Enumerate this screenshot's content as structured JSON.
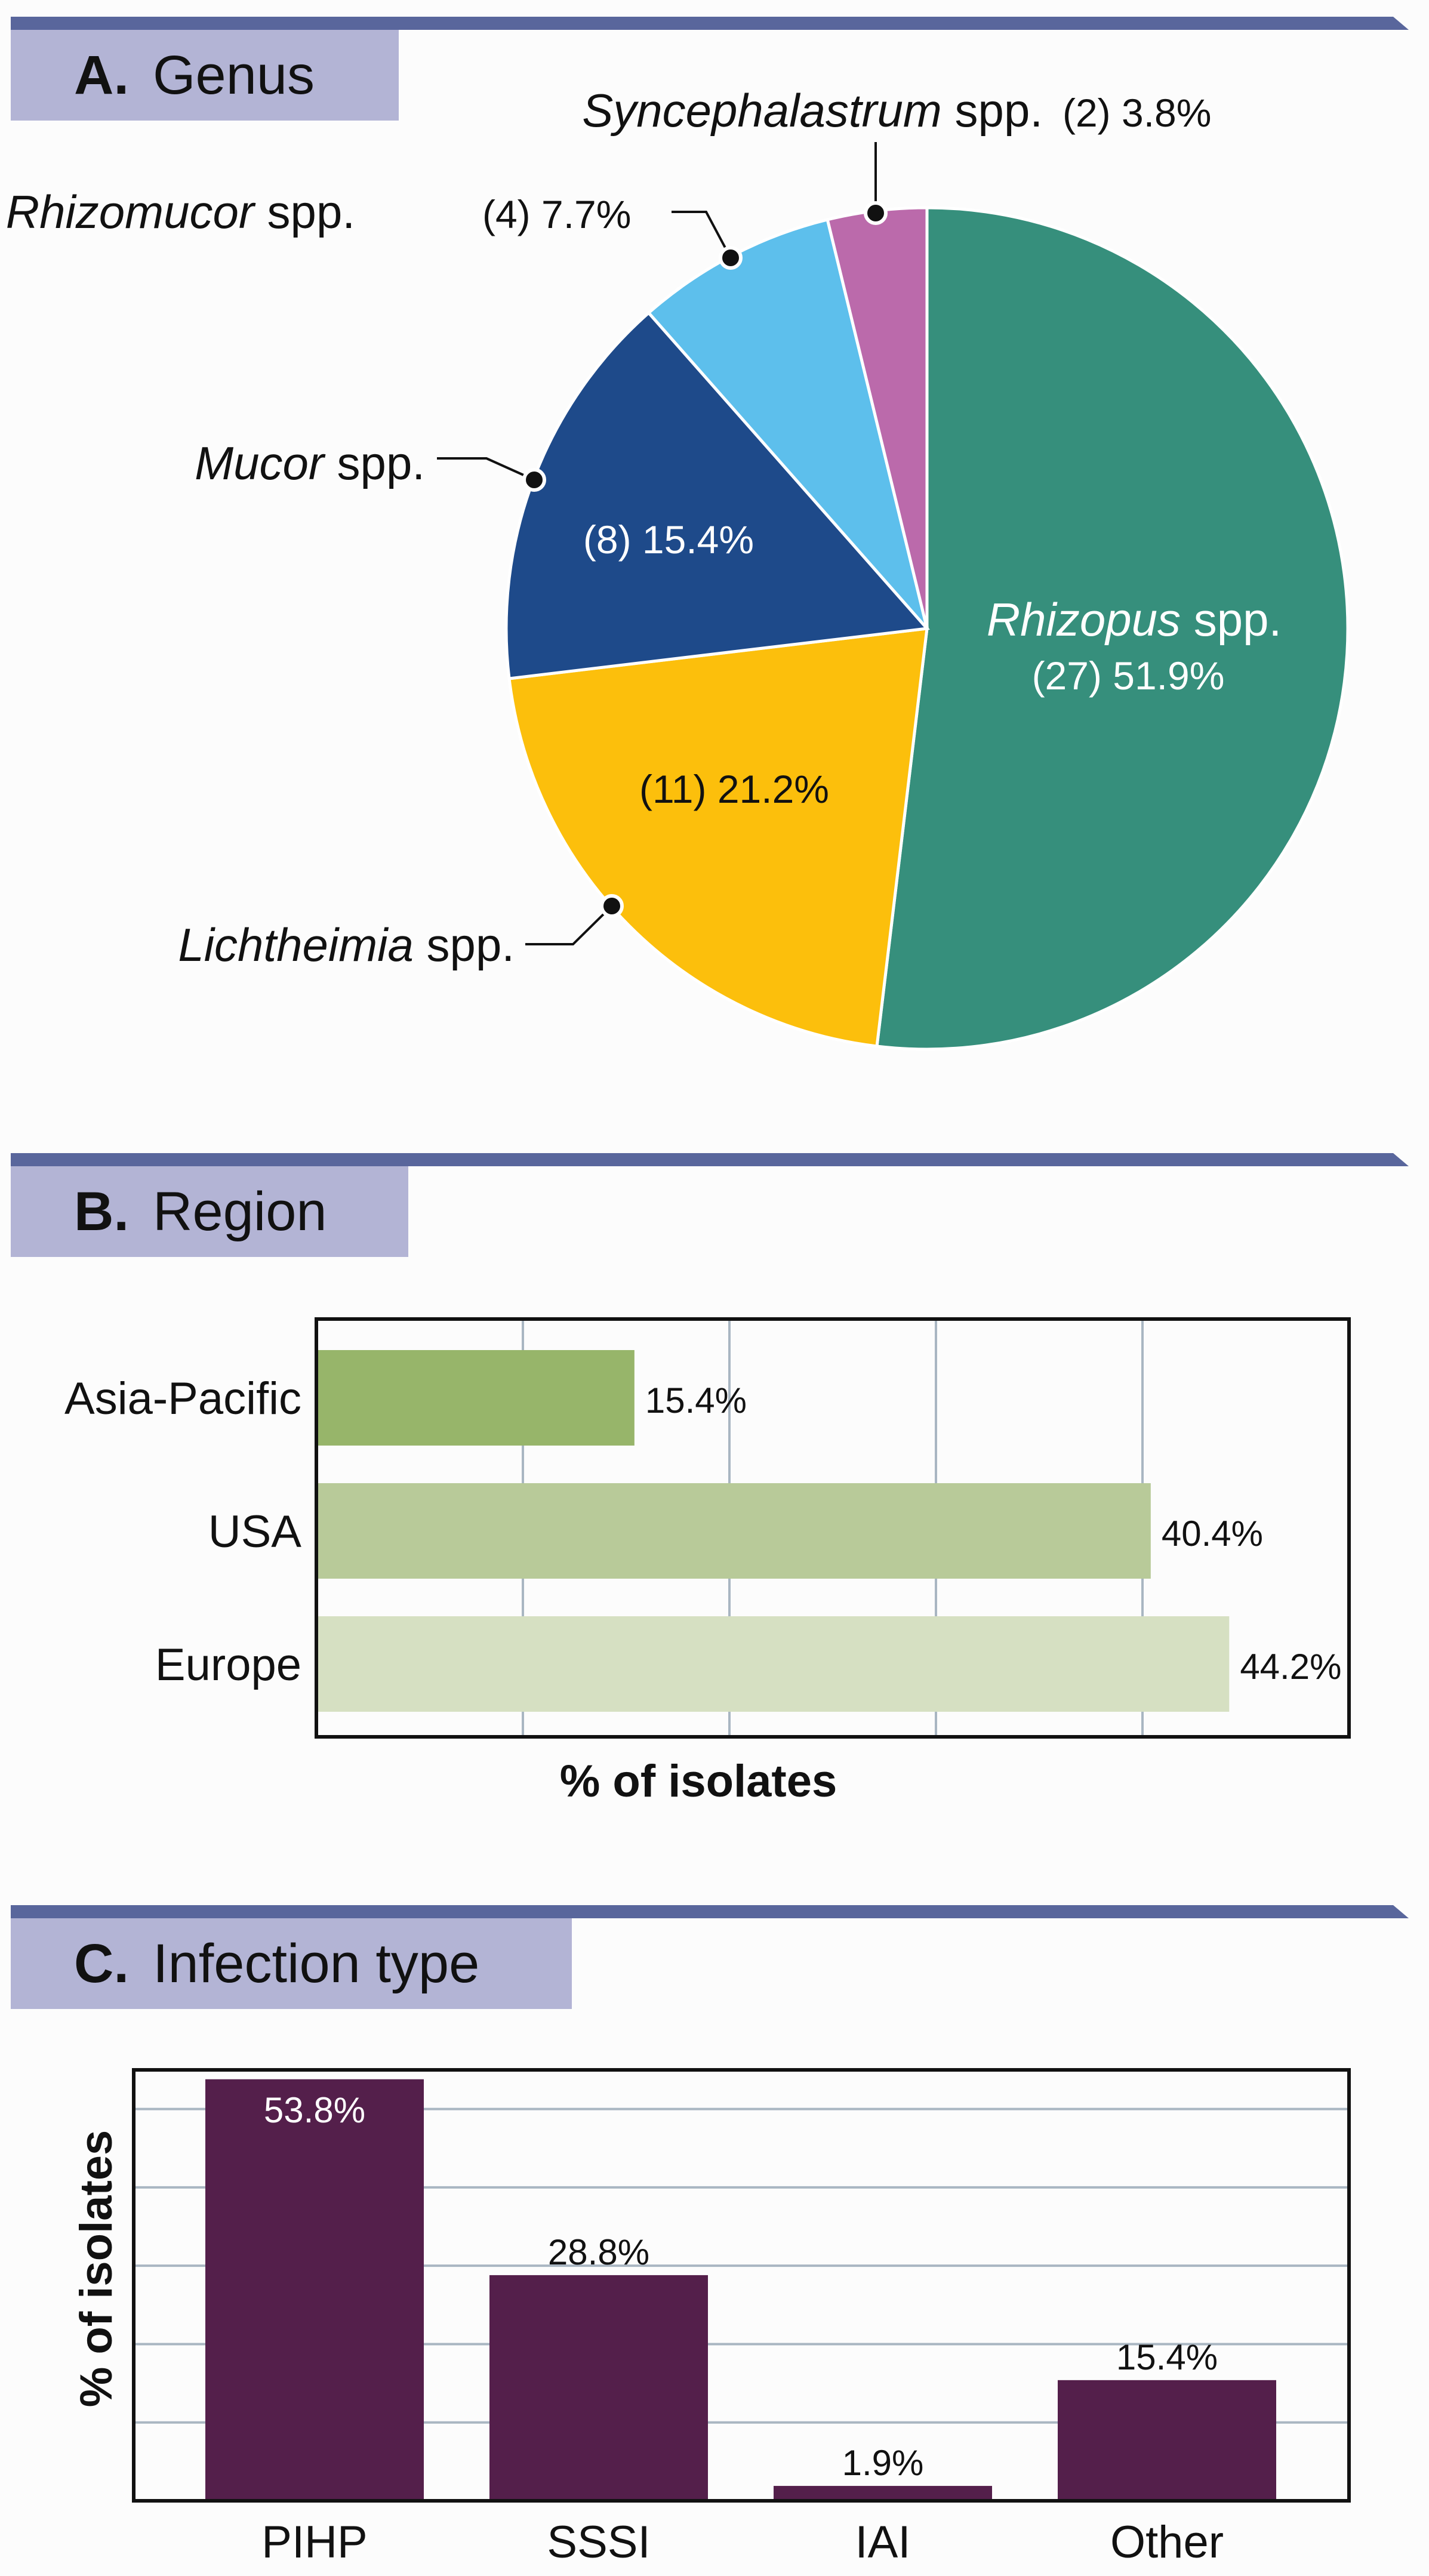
{
  "panels": {
    "a": {
      "letter": "A.",
      "title": "Genus"
    },
    "b": {
      "letter": "B.",
      "title": "Region"
    },
    "c": {
      "letter": "C.",
      "title": "Infection type"
    }
  },
  "chart_data": [
    {
      "type": "pie",
      "slices": [
        {
          "genus": "Rhizopus",
          "suffix": " spp.",
          "count": 27,
          "value": 51.9,
          "count_text": "(27) 51.9%",
          "color": "#368f7c"
        },
        {
          "genus": "Lichtheimia",
          "suffix": " spp.",
          "count": 11,
          "value": 21.2,
          "count_text": "(11) 21.2%",
          "color": "#fcbf0c"
        },
        {
          "genus": "Mucor",
          "suffix": " spp.",
          "count": 8,
          "value": 15.4,
          "count_text": "(8) 15.4%",
          "color": "#1e4a8a"
        },
        {
          "genus": "Rhizomucor",
          "suffix": " spp.",
          "count": 4,
          "value": 7.7,
          "count_text": "(4) 7.7%",
          "color": "#5dbfec"
        },
        {
          "genus": "Syncephalastrum",
          "suffix": " spp.",
          "count": 2,
          "value": 3.8,
          "count_text": "(2) 3.8%",
          "color": "#bb6aab"
        }
      ]
    },
    {
      "type": "bar",
      "orientation": "horizontal",
      "categories": [
        "Asia-Pacific",
        "USA",
        "Europe"
      ],
      "values": [
        15.4,
        40.4,
        44.2
      ],
      "value_labels": [
        "15.4%",
        "40.4%",
        "44.2%"
      ],
      "colors": [
        "#97b56a",
        "#b8ca99",
        "#d6e0c2"
      ],
      "xlabel": "% of isolates",
      "xlim": [
        0,
        50
      ],
      "grid": true
    },
    {
      "type": "bar",
      "orientation": "vertical",
      "categories": [
        "PIHP",
        "SSSI",
        "IAI",
        "Other"
      ],
      "values": [
        53.8,
        28.8,
        1.9,
        15.4
      ],
      "value_labels": [
        "53.8%",
        "28.8%",
        "1.9%",
        "15.4%"
      ],
      "color": "#541f4b",
      "ylabel": "% of isolates",
      "ylim": [
        0,
        55
      ],
      "grid": true
    }
  ]
}
